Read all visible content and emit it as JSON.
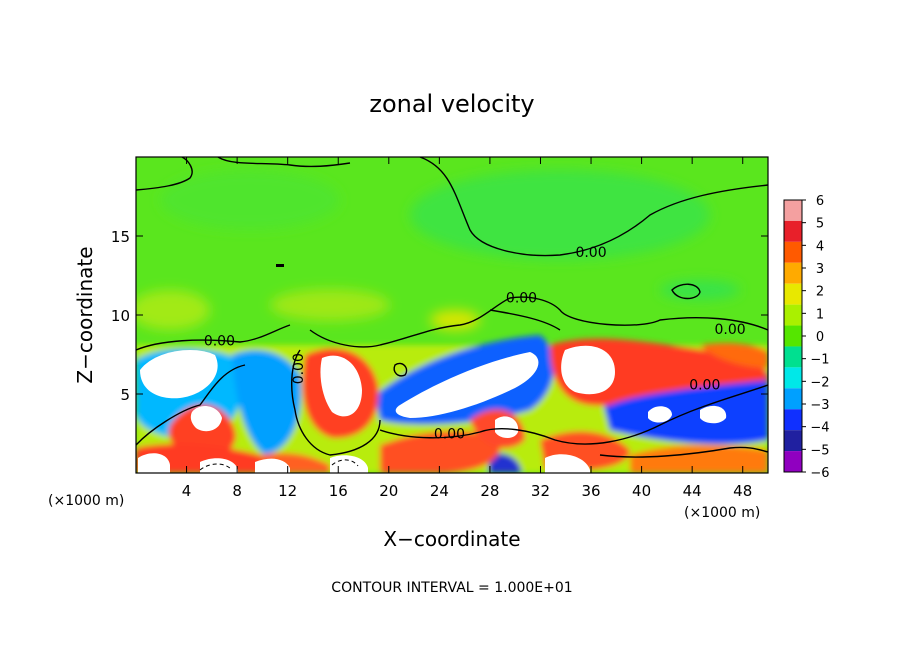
{
  "chart_data": {
    "type": "heatmap",
    "title": "zonal velocity",
    "xlabel": "X−coordinate",
    "ylabel": "Z−coordinate",
    "x_unit_label_left": "(×1000 m)",
    "x_unit_label_right": "(×1000 m)",
    "xlim": [
      0,
      50
    ],
    "ylim": [
      0,
      20
    ],
    "x_ticks": [
      4,
      8,
      12,
      16,
      20,
      24,
      28,
      32,
      36,
      40,
      44,
      48
    ],
    "x_tick_labels": [
      "4",
      "8",
      "12",
      "16",
      "20",
      "24",
      "28",
      "32",
      "36",
      "40",
      "44",
      "48"
    ],
    "y_ticks": [
      5,
      10,
      15
    ],
    "y_tick_labels": [
      "5",
      "10",
      "15"
    ],
    "colorbar": {
      "levels": [
        6,
        5,
        4,
        3,
        2,
        1,
        0,
        -1,
        -2,
        -3,
        -4,
        -5,
        -6
      ],
      "labels": [
        "6",
        "5",
        "4",
        "3",
        "2",
        "1",
        "0",
        "−1",
        "−2",
        "−3",
        "−4",
        "−5",
        "−6"
      ],
      "colors": [
        "#f4a0a0",
        "#e8202a",
        "#ff5a00",
        "#ffaa00",
        "#e8e800",
        "#aaf000",
        "#55e600",
        "#00e090",
        "#00e8e8",
        "#00a0ff",
        "#1030ff",
        "#2020a0",
        "#9000c0"
      ]
    },
    "background_value_color": "#5ae61e",
    "contour_labels": [
      {
        "text": "0.00",
        "x": 36,
        "z": 14
      },
      {
        "text": "0.00",
        "x": 30.5,
        "z": 11.1
      },
      {
        "text": "0.00",
        "x": 47,
        "z": 9.1
      },
      {
        "text": "0.00",
        "x": 6.6,
        "z": 8.4
      },
      {
        "text": "0.00",
        "x": 12.8,
        "z": 6.6
      },
      {
        "text": "0.00",
        "x": 45,
        "z": 5.6
      },
      {
        "text": "0.00",
        "x": 24.8,
        "z": 2.5
      }
    ],
    "footnote": "CONTOUR INTERVAL = 1.000E+01",
    "grid": false,
    "legend": "colorbar-right"
  }
}
